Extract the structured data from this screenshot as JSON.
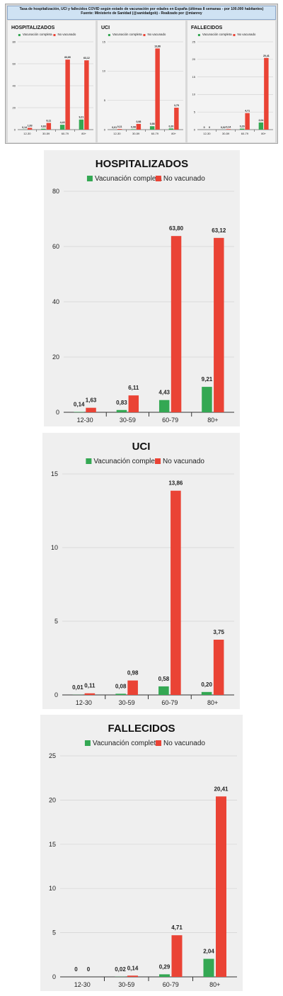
{
  "header": {
    "line1": "Tasa de hospitalización, UCI y fallecidos COVID según estado de vacunación por edades en España (últimas 8 semanas - por 100.000 habitantes)",
    "line2": "Fuente: Ministerio de Sanidad (@sanidadgob) - Realizado por @mianrey"
  },
  "colors": {
    "vaccinated": "#34a853",
    "unvaccinated": "#ea4335",
    "panel_bg": "#efefef"
  },
  "chart_data": [
    {
      "type": "bar",
      "title": "HOSPITALIZADOS",
      "categories": [
        "12-30",
        "30-59",
        "60-79",
        "80+"
      ],
      "series": [
        {
          "name": "Vacunación completa",
          "values": [
            0.14,
            0.83,
            4.43,
            9.21
          ],
          "labels": [
            "0,14",
            "0,83",
            "4,43",
            "9,21"
          ]
        },
        {
          "name": "No vacunado",
          "values": [
            1.63,
            6.11,
            63.8,
            63.12
          ],
          "labels": [
            "1,63",
            "6,11",
            "63,80",
            "63,12"
          ]
        }
      ],
      "ylim": [
        0,
        80
      ],
      "yticks": [
        0,
        20,
        40,
        60,
        80
      ],
      "legend": "top"
    },
    {
      "type": "bar",
      "title": "UCI",
      "categories": [
        "12-30",
        "30-59",
        "60-79",
        "80+"
      ],
      "series": [
        {
          "name": "Vacunación completa",
          "values": [
            0.01,
            0.08,
            0.58,
            0.2
          ],
          "labels": [
            "0,01",
            "0,08",
            "0,58",
            "0,20"
          ]
        },
        {
          "name": "No vacunado",
          "values": [
            0.11,
            0.98,
            13.86,
            3.75
          ],
          "labels": [
            "0,11",
            "0,98",
            "13,86",
            "3,75"
          ]
        }
      ],
      "ylim": [
        0,
        15
      ],
      "yticks": [
        0,
        5,
        10,
        15
      ],
      "legend": "top"
    },
    {
      "type": "bar",
      "title": "FALLECIDOS",
      "categories": [
        "12-30",
        "30-59",
        "60-79",
        "80+"
      ],
      "series": [
        {
          "name": "Vacunación completa",
          "values": [
            0,
            0.02,
            0.29,
            2.04
          ],
          "labels": [
            "0",
            "0,02",
            "0,29",
            "2,04"
          ]
        },
        {
          "name": "No vacunado",
          "values": [
            0,
            0.14,
            4.71,
            20.41
          ],
          "labels": [
            "0",
            "0,14",
            "4,71",
            "20,41"
          ]
        }
      ],
      "ylim": [
        0,
        25
      ],
      "yticks": [
        0,
        5,
        10,
        15,
        20,
        25
      ],
      "legend": "top"
    }
  ]
}
